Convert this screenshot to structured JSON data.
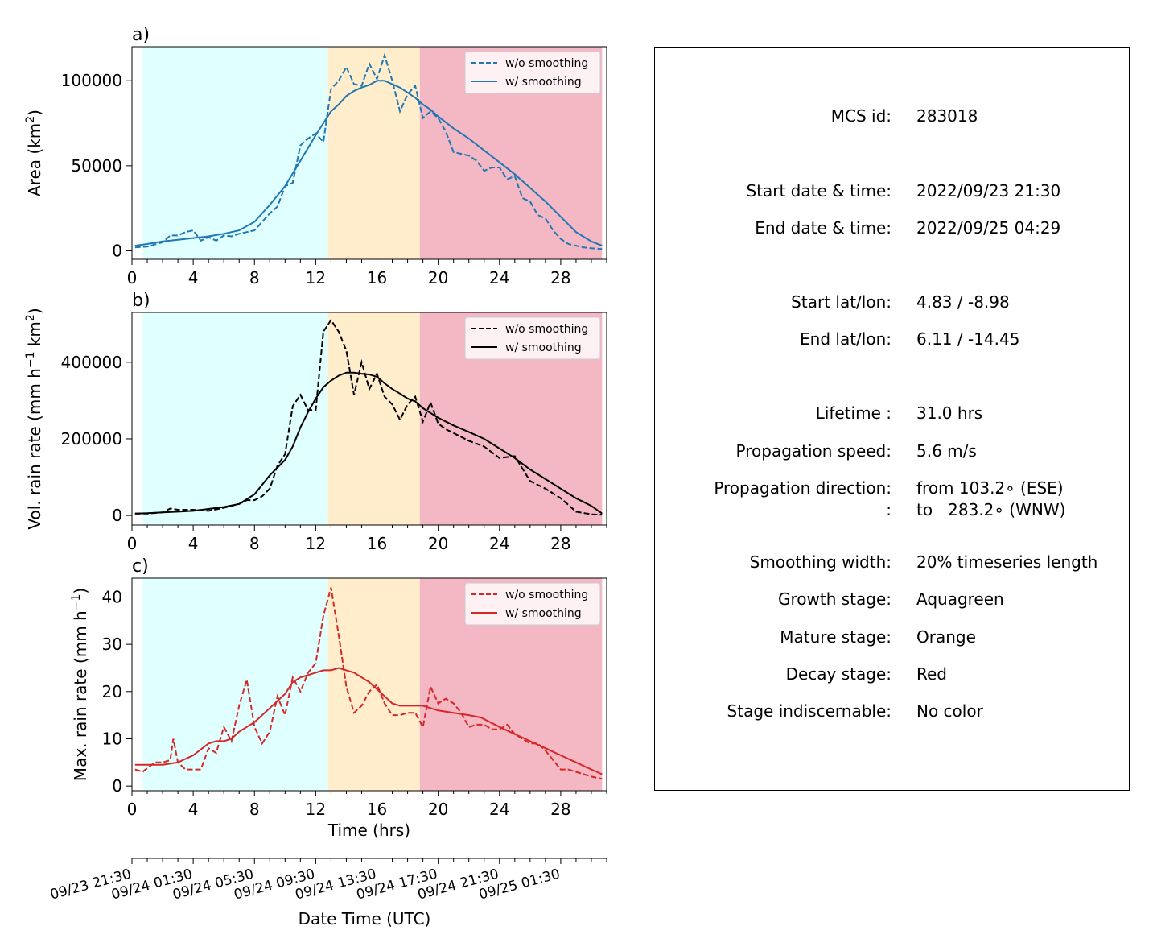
{
  "panels": [
    {
      "tag": "a)",
      "ylabel_main": "Area  (km",
      "ylabel_sup": "2",
      "ylabel_end": ")",
      "color": "#1f77b4",
      "legend": [
        "w/o smoothing",
        "w/ smoothing"
      ],
      "yticks": [
        0,
        50000,
        100000
      ],
      "ylim": [
        -5000,
        120000
      ]
    },
    {
      "tag": "b)",
      "ylabel_main": "Vol. rain rate (mm h",
      "ylabel_sup": "−1",
      "ylabel_mid": " km",
      "ylabel_sup2": "2",
      "ylabel_end": ")",
      "color": "#000000",
      "legend": [
        "w/o smoothing",
        "w/ smoothing"
      ],
      "yticks": [
        0,
        200000,
        400000
      ],
      "ylim": [
        -25000,
        530000
      ]
    },
    {
      "tag": "c)",
      "ylabel_main": "Max. rain rate  (mm h",
      "ylabel_sup": "−1",
      "ylabel_end": ")",
      "color": "#d62728",
      "legend": [
        "w/o smoothing",
        "w/ smoothing"
      ],
      "yticks": [
        0,
        10,
        20,
        30,
        40
      ],
      "ylim": [
        -1,
        44
      ]
    }
  ],
  "xticks": [
    0,
    4,
    8,
    12,
    16,
    20,
    24,
    28
  ],
  "xlim": [
    0,
    31
  ],
  "xlabel": "Time (hrs)",
  "date_ticks": [
    "09/23 21:30",
    "09/24 01:30",
    "09/24 05:30",
    "09/24 09:30",
    "09/24 13:30",
    "09/24 17:30",
    "09/24 21:30",
    "09/25 01:30"
  ],
  "date_label": "Date Time (UTC)",
  "stages": [
    {
      "name": "growth",
      "start": 0.7,
      "end": 12.8,
      "color": "#e0ffff"
    },
    {
      "name": "mature",
      "start": 12.8,
      "end": 18.8,
      "color": "#ffedcc"
    },
    {
      "name": "decay",
      "start": 18.8,
      "end": 30.7,
      "color": "#f3b8c4"
    }
  ],
  "chart_data": [
    {
      "type": "line",
      "ylabel": "Area (km2)",
      "xlabel": "",
      "xlim": [
        0,
        31
      ],
      "ylim": [
        -5000,
        120000
      ],
      "grid": false,
      "legend_position": "top-right",
      "series": [
        {
          "name": "w/o smoothing",
          "style": "dashed",
          "x": [
            0.2,
            1,
            2,
            2.5,
            3,
            3.5,
            4,
            4.5,
            5,
            5.5,
            6,
            6.5,
            7,
            7.5,
            8,
            8.5,
            9,
            9.5,
            10,
            10.5,
            11,
            11.5,
            12,
            12.5,
            13,
            13.5,
            14,
            14.5,
            15,
            15.5,
            16,
            16.5,
            17,
            17.5,
            18,
            18.5,
            19,
            19.5,
            20,
            20.5,
            21,
            21.5,
            22,
            22.5,
            23,
            23.5,
            24,
            24.5,
            25,
            25.5,
            26,
            26.5,
            27,
            27.5,
            28,
            28.5,
            29,
            29.5,
            30,
            30.7
          ],
          "y": [
            2000,
            2500,
            5000,
            9000,
            9000,
            11000,
            12000,
            6000,
            8000,
            6000,
            9000,
            8500,
            10000,
            11000,
            12000,
            17000,
            22000,
            26000,
            38000,
            40000,
            62000,
            66000,
            69000,
            64000,
            95000,
            100000,
            108000,
            98000,
            97000,
            110000,
            101000,
            115000,
            100000,
            82000,
            92000,
            97000,
            78000,
            82000,
            78000,
            70000,
            58000,
            57000,
            56000,
            53000,
            47000,
            49000,
            49000,
            42000,
            44000,
            31000,
            29000,
            21000,
            19000,
            12000,
            7000,
            4000,
            3000,
            2000,
            1500,
            1000
          ]
        },
        {
          "name": "w/ smoothing",
          "style": "solid",
          "x": [
            0.2,
            1,
            2,
            3,
            4,
            5,
            6,
            7,
            8,
            9,
            10,
            11,
            12,
            12.5,
            13,
            13.5,
            14,
            14.5,
            15,
            15.5,
            16,
            16.5,
            17,
            17.5,
            18,
            18.5,
            19,
            19.5,
            20,
            21,
            22,
            23,
            24,
            25,
            26,
            27,
            28,
            29,
            30,
            30.7
          ],
          "y": [
            3000,
            4000,
            5500,
            6500,
            7500,
            8500,
            10000,
            12000,
            17000,
            27000,
            38000,
            53000,
            68000,
            75000,
            82000,
            86000,
            91000,
            94000,
            96000,
            97500,
            100000,
            100000,
            98000,
            96000,
            93000,
            90000,
            86000,
            83000,
            79000,
            72000,
            66000,
            59000,
            52000,
            45000,
            37000,
            29000,
            20000,
            11000,
            5500,
            3000
          ]
        }
      ]
    },
    {
      "type": "line",
      "ylabel": "Vol. rain rate (mm h−1 km2)",
      "xlabel": "",
      "xlim": [
        0,
        31
      ],
      "ylim": [
        -25000,
        530000
      ],
      "grid": false,
      "legend_position": "top-right",
      "series": [
        {
          "name": "w/o smoothing",
          "style": "dashed",
          "x": [
            0.2,
            1,
            2,
            2.5,
            3,
            4,
            5,
            6,
            7,
            7.5,
            8,
            8.5,
            9,
            9.5,
            10,
            10.5,
            11,
            11.5,
            12,
            12.5,
            13,
            13.5,
            14,
            14.5,
            15,
            15.5,
            16,
            16.5,
            17,
            17.5,
            18,
            18.5,
            19,
            19.5,
            20,
            20.5,
            21,
            22,
            23,
            24,
            25,
            26,
            27,
            28,
            29,
            30,
            30.7
          ],
          "y": [
            5000,
            5000,
            8000,
            18000,
            15000,
            15000,
            12000,
            20000,
            30000,
            40000,
            40000,
            50000,
            70000,
            130000,
            160000,
            285000,
            315000,
            275000,
            275000,
            480000,
            510000,
            480000,
            430000,
            315000,
            400000,
            330000,
            370000,
            310000,
            290000,
            250000,
            290000,
            310000,
            245000,
            295000,
            240000,
            225000,
            215000,
            195000,
            180000,
            150000,
            155000,
            90000,
            70000,
            45000,
            10000,
            3000,
            2000
          ]
        },
        {
          "name": "w/ smoothing",
          "style": "solid",
          "x": [
            0.2,
            1,
            2,
            3,
            4,
            5,
            6,
            7,
            8,
            9,
            10,
            10.5,
            11,
            11.5,
            12,
            12.5,
            13,
            13.5,
            14,
            14.5,
            15,
            15.5,
            16,
            16.5,
            17,
            17.5,
            18,
            18.5,
            19,
            20,
            21,
            22,
            23,
            24,
            25,
            26,
            27,
            28,
            29,
            30,
            30.7
          ],
          "y": [
            5000,
            6000,
            8000,
            10000,
            12000,
            17000,
            22000,
            30000,
            55000,
            105000,
            145000,
            180000,
            230000,
            270000,
            305000,
            335000,
            352000,
            365000,
            373000,
            373000,
            370000,
            368000,
            362000,
            345000,
            330000,
            318000,
            305000,
            298000,
            280000,
            255000,
            235000,
            218000,
            200000,
            175000,
            150000,
            120000,
            95000,
            70000,
            45000,
            25000,
            5000
          ]
        }
      ]
    },
    {
      "type": "line",
      "ylabel": "Max. rain rate (mm h−1)",
      "xlabel": "Time (hrs)",
      "xlim": [
        0,
        31
      ],
      "ylim": [
        -1,
        44
      ],
      "grid": false,
      "legend_position": "top-right",
      "series": [
        {
          "name": "w/o smoothing",
          "style": "dashed",
          "x": [
            0.2,
            0.7,
            1.5,
            2,
            2.5,
            2.7,
            3,
            3.5,
            4,
            4.5,
            5,
            5.5,
            6,
            6.5,
            7,
            7.5,
            8,
            8.5,
            9,
            9.5,
            10,
            10.5,
            11,
            11.5,
            12,
            12.5,
            13,
            13.5,
            14,
            14.5,
            15,
            15.5,
            16,
            16.5,
            17,
            17.5,
            18,
            18.5,
            19,
            19.5,
            20,
            20.5,
            21,
            21.5,
            22,
            22.5,
            23,
            23.5,
            24,
            24.5,
            25,
            25.5,
            26,
            26.5,
            27,
            27.5,
            28,
            28.5,
            29,
            29.5,
            30,
            30.7
          ],
          "y": [
            3.5,
            3,
            5,
            5,
            5.5,
            10,
            5,
            3.5,
            3.5,
            3.5,
            8,
            7,
            12.5,
            9.5,
            17,
            22.5,
            12.5,
            9,
            11.5,
            19,
            15,
            23,
            20,
            24,
            26,
            36,
            42,
            32,
            21,
            15.5,
            17,
            20,
            21.5,
            17.5,
            15,
            15,
            15.5,
            15.5,
            12.5,
            21,
            17.5,
            18.5,
            17.5,
            15.5,
            12.5,
            13,
            13,
            12,
            12,
            13,
            11,
            10,
            9,
            9,
            7.5,
            5.5,
            3.5,
            3.5,
            3,
            2.5,
            2,
            1.5
          ]
        },
        {
          "name": "w/ smoothing",
          "style": "solid",
          "x": [
            0.2,
            1,
            2,
            3,
            4,
            5,
            5.5,
            6,
            6.5,
            7,
            7.5,
            8,
            8.5,
            9,
            9.5,
            10,
            10.5,
            11,
            11.5,
            12,
            12.5,
            13,
            13.5,
            14,
            14.5,
            15,
            15.5,
            16,
            16.5,
            17,
            17.5,
            18,
            18.5,
            19,
            20,
            21,
            22,
            22.8,
            24,
            25,
            26,
            27,
            28,
            29,
            30,
            30.7
          ],
          "y": [
            4.5,
            4.5,
            4.5,
            5,
            6.5,
            9,
            9.5,
            9.5,
            10,
            11.5,
            12.5,
            13.5,
            15,
            16.5,
            18,
            19.5,
            22,
            23,
            23.5,
            24,
            24.5,
            24.5,
            25,
            24.5,
            24,
            23,
            22,
            20.5,
            19,
            17.5,
            17,
            17,
            17,
            17,
            16,
            15.5,
            15,
            14.5,
            12.5,
            11,
            9.5,
            8,
            6.5,
            5,
            3.5,
            2.5
          ]
        }
      ]
    }
  ],
  "info": {
    "rows": [
      {
        "key": "MCS id:",
        "value": "283018"
      },
      {
        "key": "Start date & time:",
        "value": "2022/09/23 21:30"
      },
      {
        "key": "End date & time:",
        "value": "2022/09/25 04:29"
      },
      {
        "key": "Start lat/lon:",
        "value": "4.83 / -8.98"
      },
      {
        "key": "End lat/lon:",
        "value": "6.11 / -14.45"
      },
      {
        "key": "Lifetime :",
        "value": "31.0 hrs"
      },
      {
        "key": "Propagation speed:",
        "value": "5.6 m/s"
      },
      {
        "key": "Propagation direction:",
        "value": "from 103.2∘ (ESE)"
      },
      {
        "key": ":",
        "value": "to   283.2∘ (WNW)"
      },
      {
        "key": "Smoothing width:",
        "value": "20% timeseries length"
      },
      {
        "key": "Growth stage:",
        "value": "Aquagreen"
      },
      {
        "key": "Mature stage:",
        "value": "Orange"
      },
      {
        "key": "Decay stage:",
        "value": "Red"
      },
      {
        "key": "Stage indiscernable:",
        "value": "No color"
      }
    ]
  }
}
